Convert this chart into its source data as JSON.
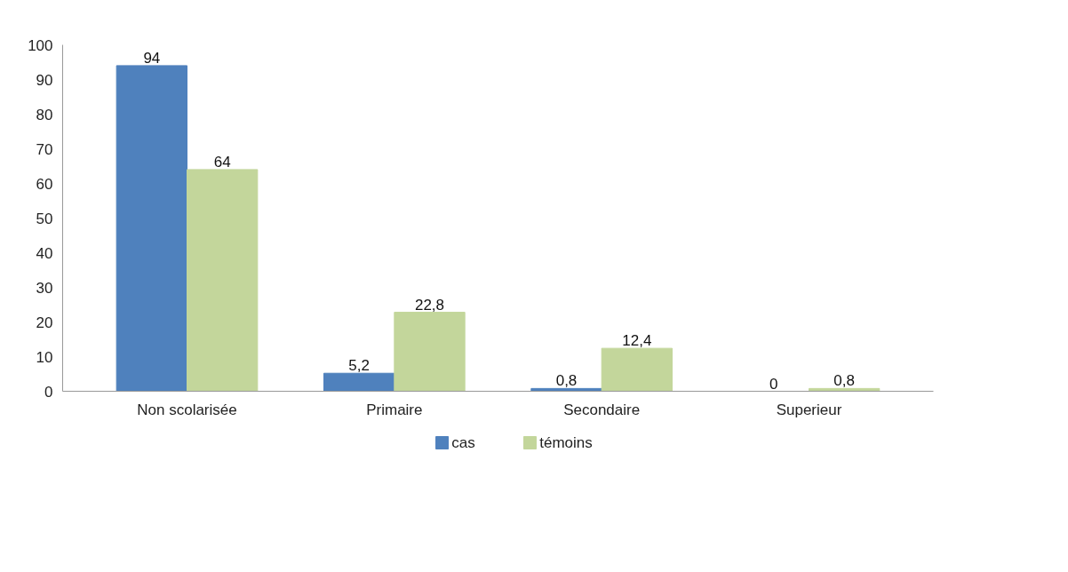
{
  "chart_data": {
    "type": "bar",
    "categories": [
      "Non scolarisée",
      "Primaire",
      "Secondaire",
      "Superieur"
    ],
    "series": [
      {
        "name": "cas",
        "color": "#4f81bd",
        "values": [
          94,
          5.2,
          0.8,
          0
        ],
        "value_labels": [
          "94",
          "5,2",
          "0,8",
          "0"
        ]
      },
      {
        "name": "témoins",
        "color": "#c3d69b",
        "values": [
          64,
          22.8,
          12.4,
          0.8
        ],
        "value_labels": [
          "64",
          "22,8",
          "12,4",
          "0,8"
        ]
      }
    ],
    "ylim": [
      0,
      100
    ],
    "yticks": [
      0,
      10,
      20,
      30,
      40,
      50,
      60,
      70,
      80,
      90,
      100
    ],
    "grid": false,
    "legend": "bottom"
  }
}
